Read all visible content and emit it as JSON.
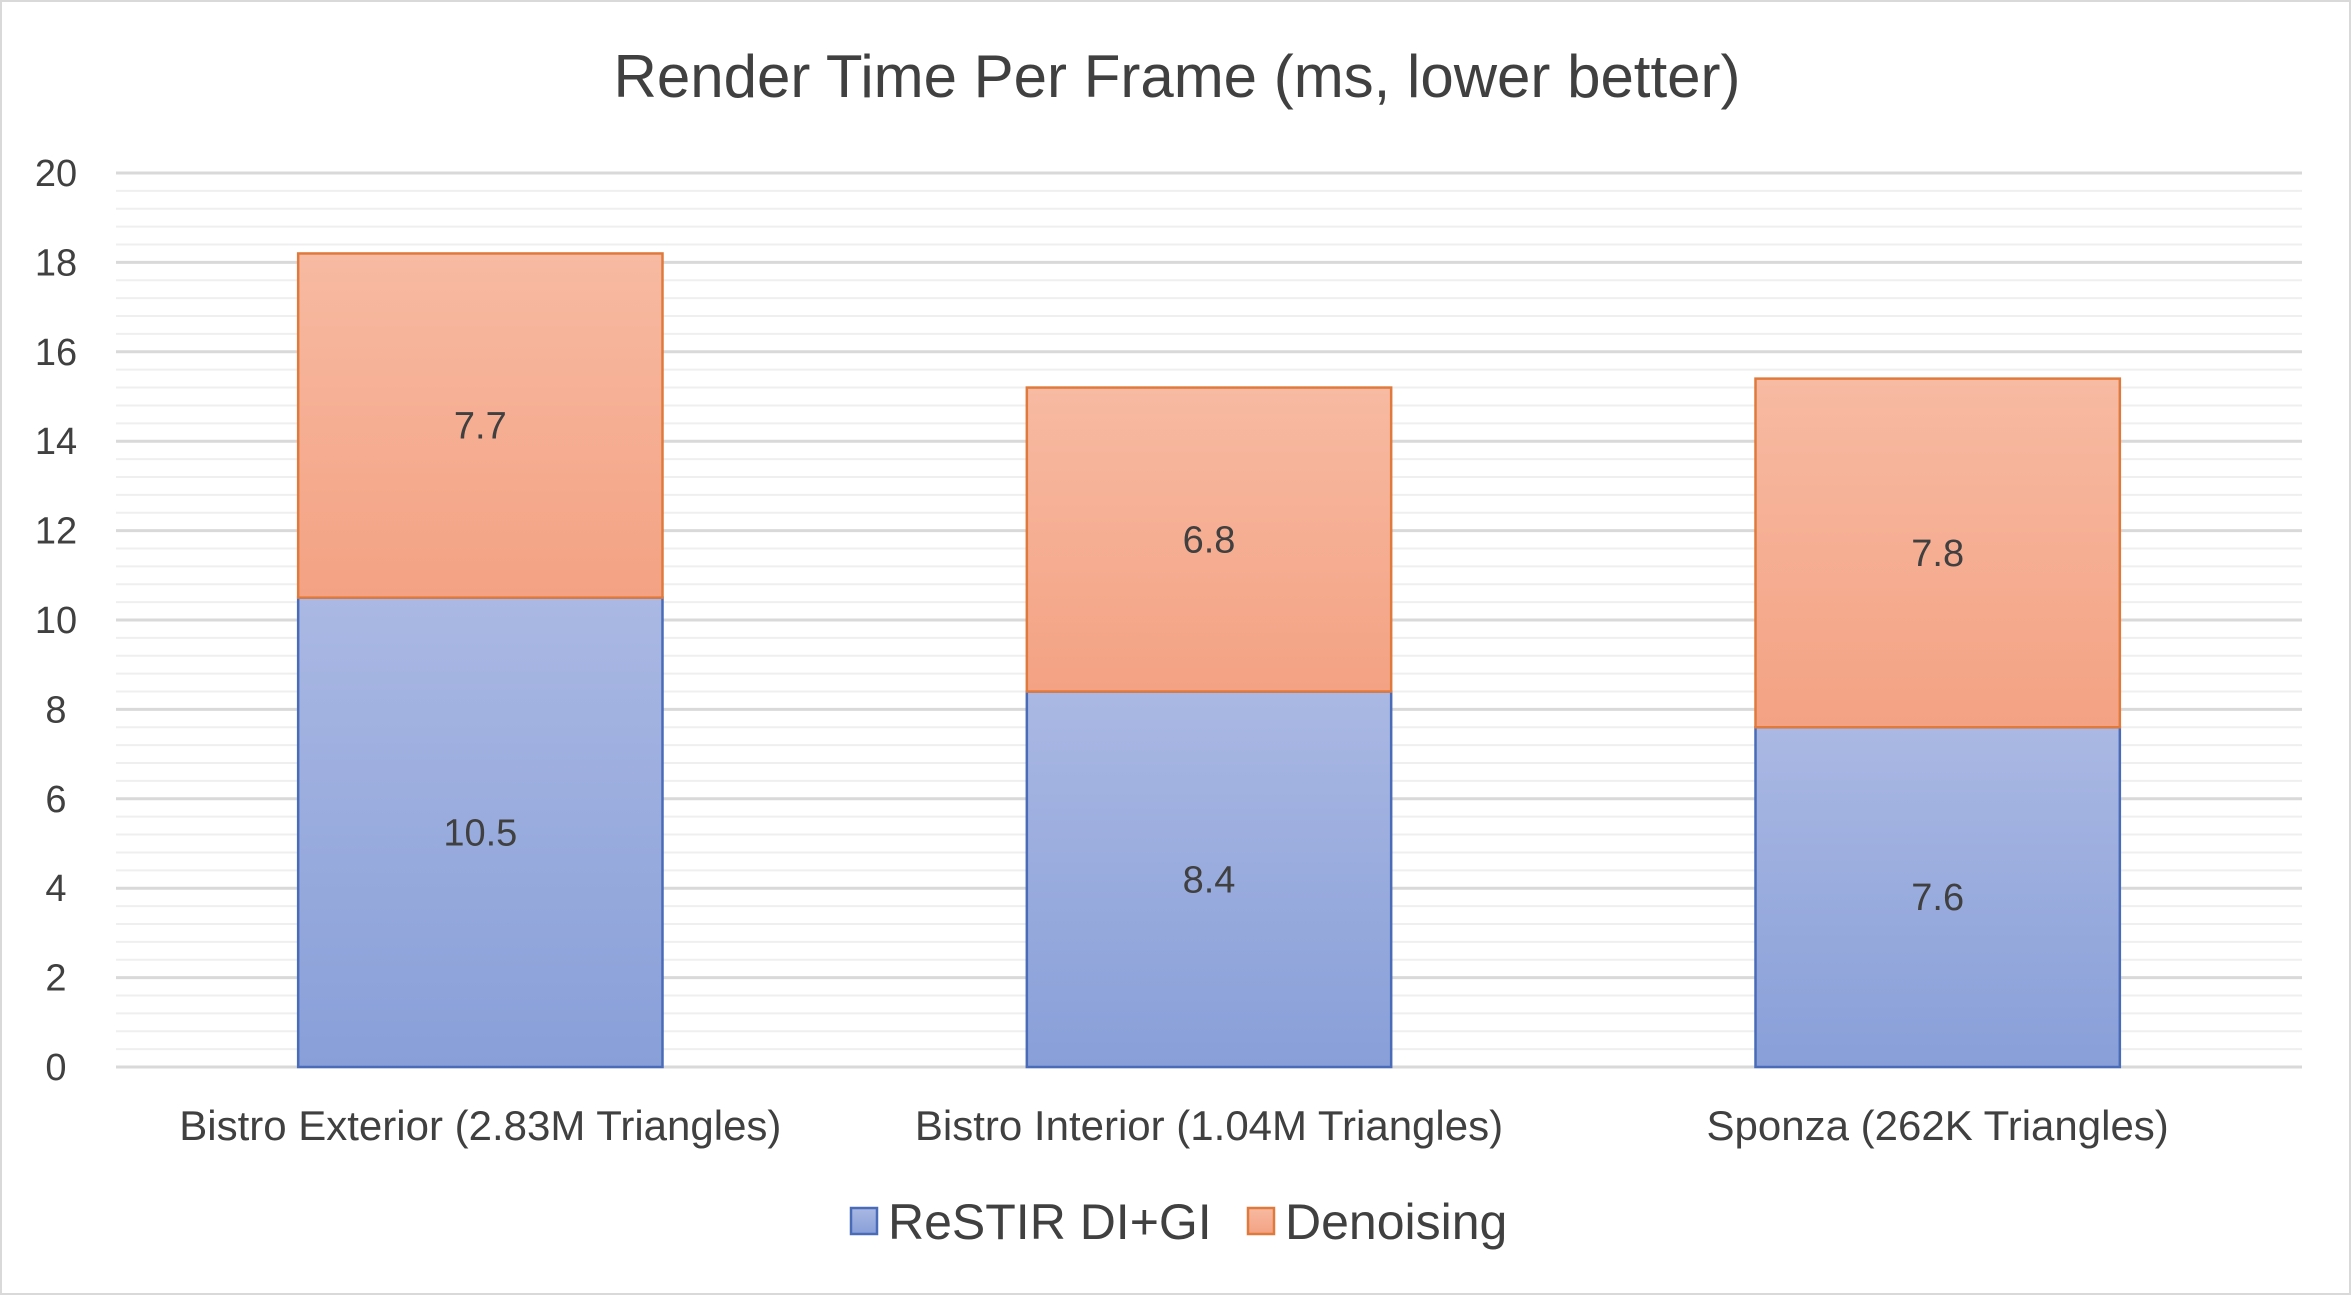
{
  "chart_data": {
    "type": "bar",
    "stacked": true,
    "title": "Render Time Per Frame (ms, lower better)",
    "xlabel": "",
    "ylabel": "",
    "ylim": [
      0,
      20
    ],
    "yticks": [
      "0",
      "2",
      "4",
      "6",
      "8",
      "10",
      "12",
      "14",
      "16",
      "18",
      "20"
    ],
    "grid": true,
    "legend_position": "bottom",
    "categories": [
      "Bistro Exterior (2.83M Triangles)",
      "Bistro Interior (1.04M Triangles)",
      "Sponza (262K Triangles)"
    ],
    "series": [
      {
        "name": "ReSTIR DI+GI",
        "values": [
          10.5,
          8.4,
          7.6
        ],
        "labels": [
          "10.5",
          "8.4",
          "7.6"
        ],
        "color": "#8fa5d9",
        "gradient_top": "#aab8e3",
        "gradient_bottom": "#889fd8",
        "border": "#4a6bb8"
      },
      {
        "name": "Denoising",
        "values": [
          7.7,
          6.8,
          7.8
        ],
        "labels": [
          "7.7",
          "6.8",
          "7.8"
        ],
        "color": "#f5a886",
        "gradient_top": "#f7baa2",
        "gradient_bottom": "#f4a283",
        "border": "#e07a3c"
      }
    ]
  }
}
